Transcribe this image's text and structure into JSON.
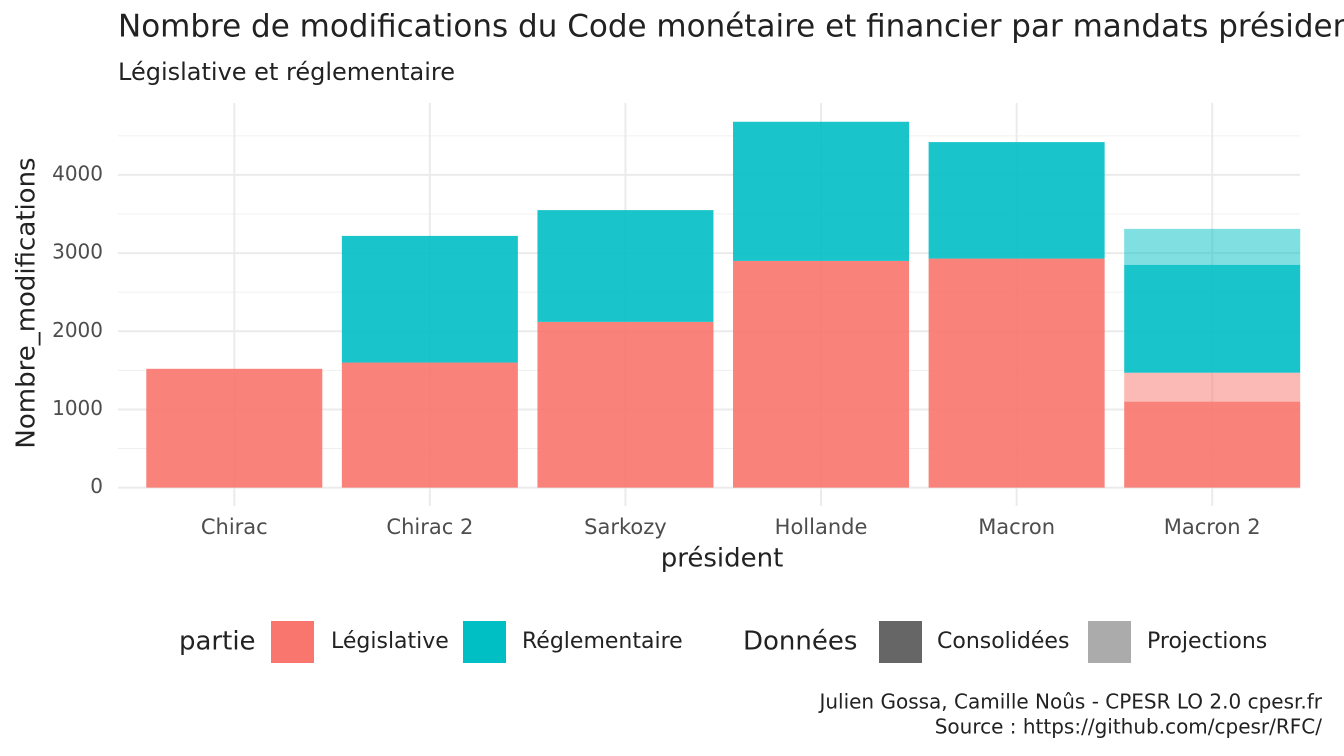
{
  "chart_data": {
    "type": "stacked-bar",
    "title": "Nombre de modifications du Code monétaire et financier par mandats présidentiels",
    "subtitle": "Législative et réglementaire",
    "x_label": "président",
    "y_label": "Nombre_modifications",
    "categories": [
      "Chirac",
      "Chirac 2",
      "Sarkozy",
      "Hollande",
      "Macron",
      "Macron 2"
    ],
    "legend_title": "partie",
    "series": [
      {
        "name": "Législative",
        "color": "#F8766D",
        "values": [
          1520,
          1600,
          2120,
          2900,
          2930,
          1100
        ],
        "projection": [
          null,
          null,
          null,
          null,
          null,
          370
        ]
      },
      {
        "name": "Réglementaire",
        "color": "#00BFC4",
        "values": [
          0,
          1620,
          1430,
          1780,
          1490,
          1380
        ],
        "projection": [
          null,
          null,
          null,
          null,
          null,
          460
        ]
      }
    ],
    "data_legend": {
      "title": "Données",
      "items": [
        {
          "name": "Consolidées",
          "color": "#666666",
          "alpha": 0.9
        },
        {
          "name": "Projections",
          "color": "#ABABAB",
          "alpha": 0.5
        }
      ]
    },
    "ylim": [
      -235,
      4920
    ],
    "yticks": [
      0,
      1000,
      2000,
      3000,
      4000
    ],
    "yminor": [
      500,
      1500,
      2500,
      3500,
      4500
    ],
    "grid": true,
    "caption": [
      "Julien Gossa, Camille Noûs - CPESR LO 2.0 cpesr.fr",
      "Source : https://github.com/cpesr/RFC/"
    ]
  }
}
